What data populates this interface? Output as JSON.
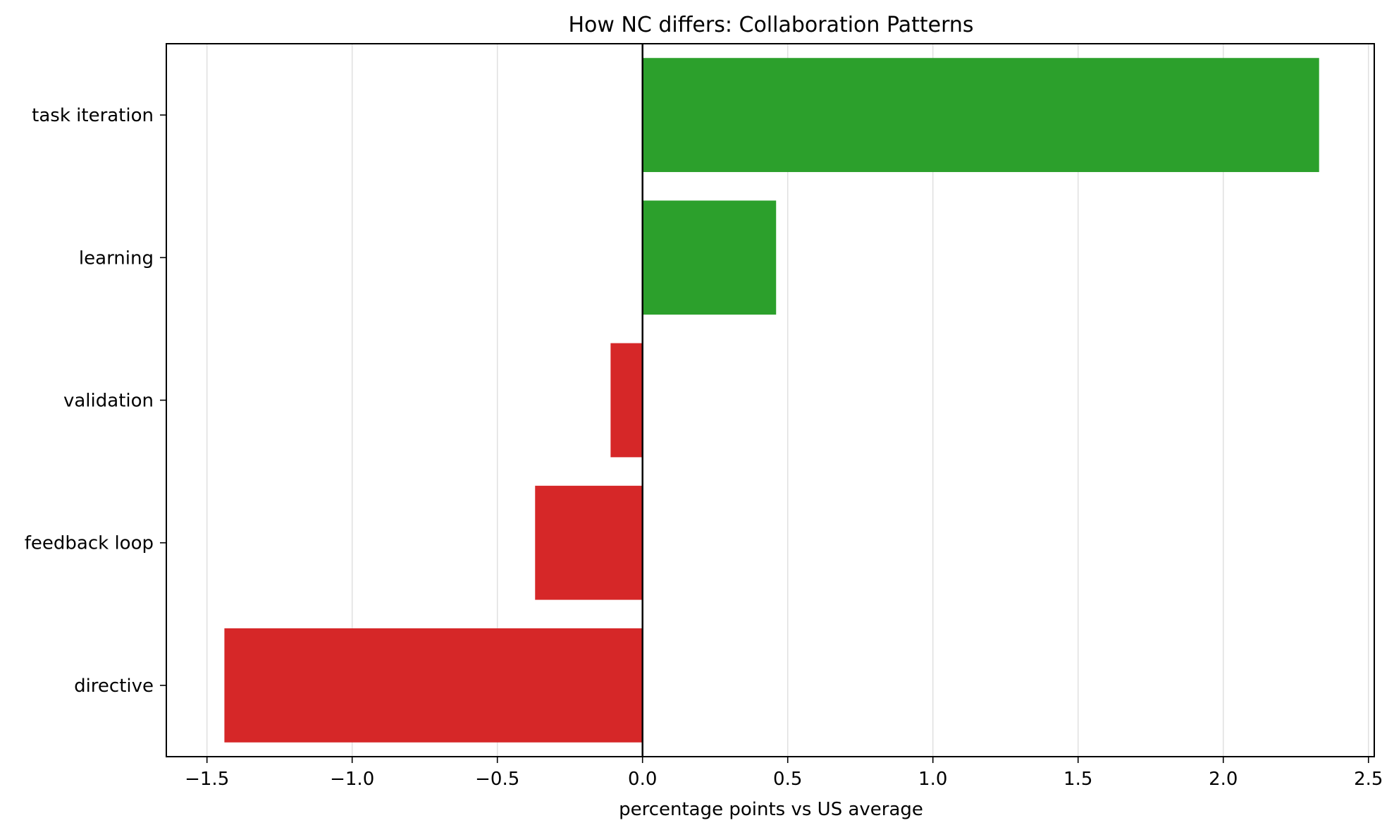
{
  "chart_data": {
    "type": "bar",
    "orientation": "horizontal",
    "title": "How NC differs: Collaboration Patterns",
    "xlabel": "percentage points vs US average",
    "ylabel": "",
    "categories": [
      "task iteration",
      "learning",
      "validation",
      "feedback loop",
      "directive"
    ],
    "values": [
      2.33,
      0.46,
      -0.11,
      -0.37,
      -1.44
    ],
    "xlim": [
      -1.64,
      2.52
    ],
    "xticks": [
      -1.5,
      -1.0,
      -0.5,
      0.0,
      0.5,
      1.0,
      1.5,
      2.0,
      2.5
    ],
    "xtick_labels": [
      "−1.5",
      "−1.0",
      "−0.5",
      "0.0",
      "0.5",
      "1.0",
      "1.5",
      "2.0",
      "2.5"
    ],
    "grid": "x-only",
    "colors": {
      "positive": "#2ca02c",
      "negative": "#d62728",
      "grid": "#e0e0e0",
      "axis": "#000000",
      "zero_line": "#000000"
    }
  }
}
